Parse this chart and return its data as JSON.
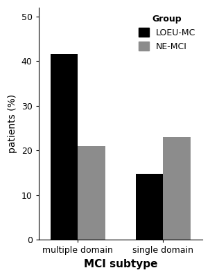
{
  "categories": [
    "multiple domain",
    "single domain"
  ],
  "loeu_mc_values": [
    41.7,
    14.8
  ],
  "ne_mci_values": [
    21.0,
    23.0
  ],
  "loeu_mc_color": "#000000",
  "ne_mci_color": "#8c8c8c",
  "ylabel": "patients (%)",
  "xlabel": "MCI subtype",
  "ylim": [
    0,
    52
  ],
  "yticks": [
    0,
    10,
    20,
    30,
    40,
    50
  ],
  "legend_title": "Group",
  "legend_labels": [
    "LOEU-MC",
    "NE-MCI"
  ],
  "bar_width": 0.42,
  "x_positions": [
    0.0,
    1.3
  ],
  "background_color": "#ffffff",
  "axis_fontsize": 10,
  "tick_fontsize": 9,
  "legend_fontsize": 9,
  "xlabel_fontsize": 11
}
